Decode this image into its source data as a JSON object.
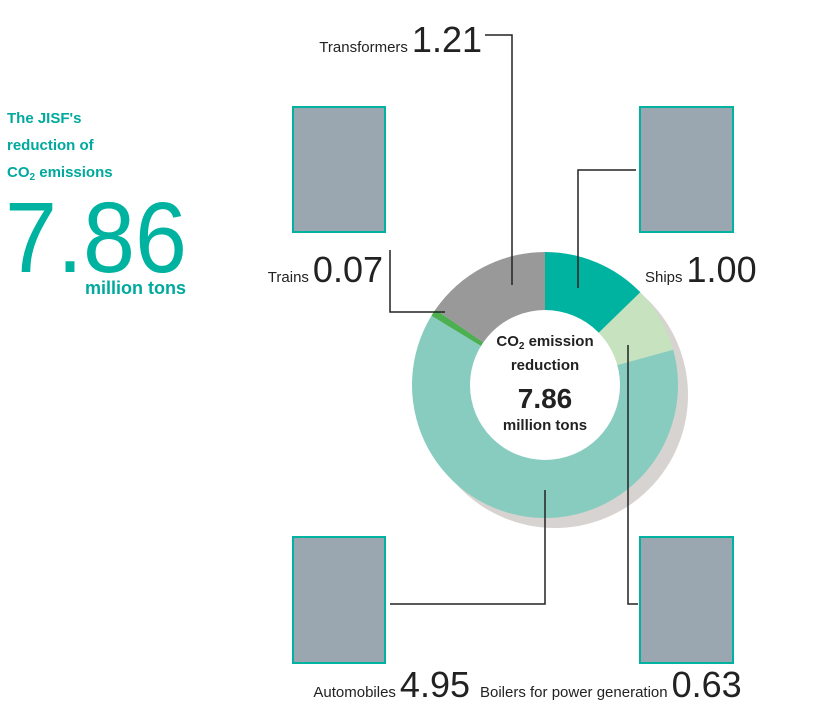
{
  "chart_data": {
    "type": "pie",
    "title_line1": "The JISF's",
    "title_line2": "reduction of",
    "co": "CO",
    "sub": "2",
    "title_rest": " emissions",
    "center_rest": " emission",
    "center_line2": "reduction",
    "total": 7.86,
    "unit": "million tons",
    "categories": [
      "Ships",
      "Boilers for power generation",
      "Automobiles",
      "Trains",
      "Transformers"
    ],
    "values": [
      1.0,
      0.63,
      4.95,
      0.07,
      1.21
    ],
    "value_labels": [
      "1.00",
      "0.63",
      "4.95",
      "0.07",
      "1.21"
    ],
    "colors": [
      "#00b3a0",
      "#c6e2bf",
      "#88ccc0",
      "#4caf50",
      "#999999"
    ]
  }
}
